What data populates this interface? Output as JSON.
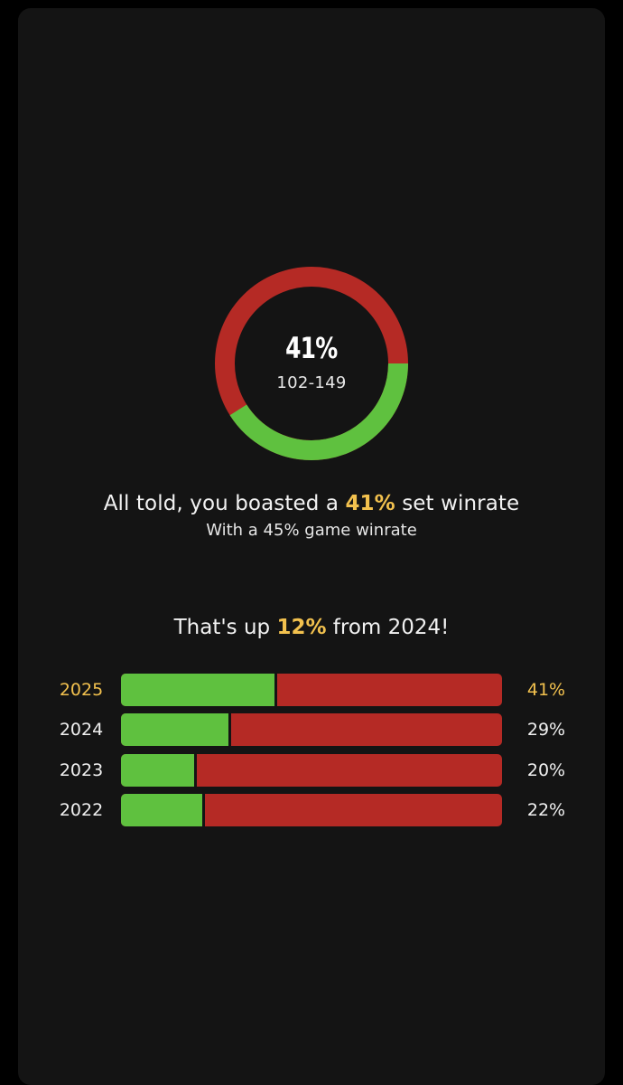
{
  "summary": {
    "set_winrate_label": "41%",
    "record": "102-149",
    "win_fraction": 0.41,
    "headline_prefix": "All told, you boasted a ",
    "headline_value": "41%",
    "headline_suffix": " set winrate",
    "subline": "With a 45% game winrate",
    "compare_prefix": "That's up ",
    "compare_value": "12%",
    "compare_suffix": " from 2024!"
  },
  "colors": {
    "win": "#5fc13f",
    "loss": "#b52a25",
    "highlight": "#f2c14e",
    "card": "#141414"
  },
  "years": [
    {
      "year": "2025",
      "pct_label": "41%",
      "win_fraction": 0.41,
      "current": true
    },
    {
      "year": "2024",
      "pct_label": "29%",
      "win_fraction": 0.29,
      "current": false
    },
    {
      "year": "2023",
      "pct_label": "20%",
      "win_fraction": 0.2,
      "current": false
    },
    {
      "year": "2022",
      "pct_label": "22%",
      "win_fraction": 0.22,
      "current": false
    }
  ]
}
